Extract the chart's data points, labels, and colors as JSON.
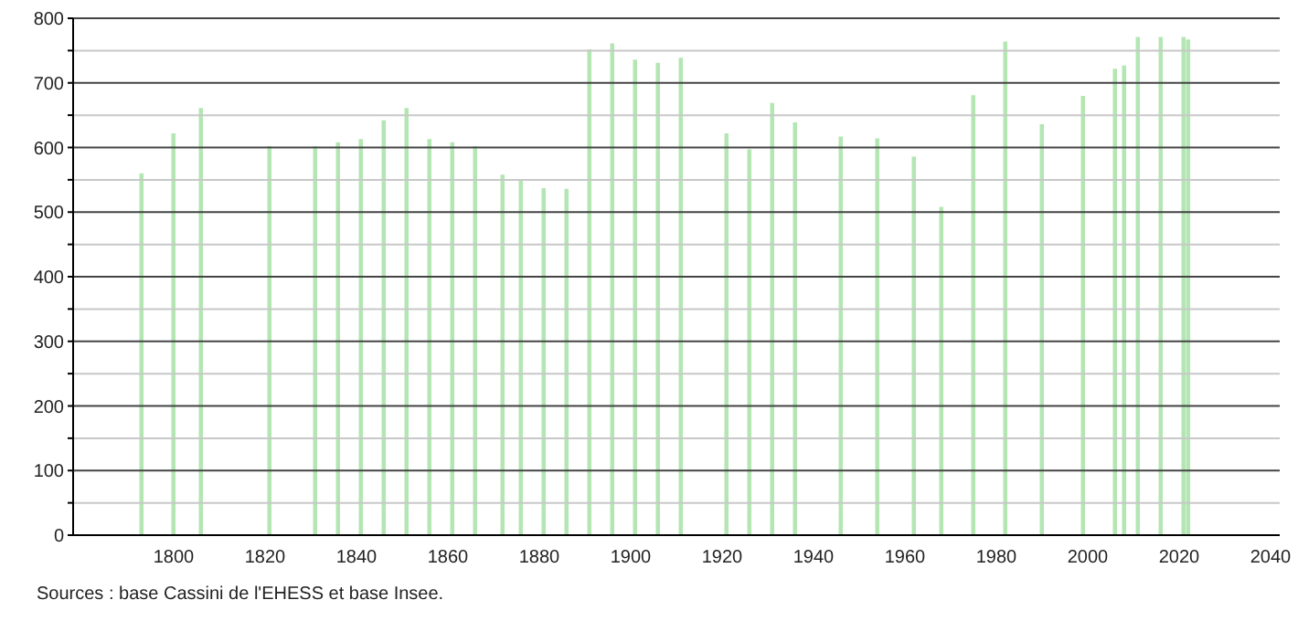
{
  "chart_data": {
    "type": "bar",
    "x": [
      1793,
      1800,
      1806,
      1821,
      1831,
      1836,
      1841,
      1846,
      1851,
      1856,
      1861,
      1866,
      1872,
      1876,
      1881,
      1886,
      1891,
      1896,
      1901,
      1906,
      1911,
      1921,
      1926,
      1931,
      1936,
      1946,
      1954,
      1962,
      1968,
      1975,
      1982,
      1990,
      1999,
      2006,
      2008,
      2011,
      2016,
      2021,
      2022
    ],
    "values": [
      560,
      622,
      661,
      602,
      602,
      608,
      613,
      642,
      661,
      613,
      608,
      602,
      558,
      550,
      537,
      536,
      752,
      761,
      736,
      731,
      739,
      622,
      597,
      669,
      639,
      617,
      614,
      586,
      508,
      681,
      764,
      636,
      680,
      722,
      727,
      771,
      771,
      771,
      767
    ],
    "color": "#b3e6b3",
    "xlim": [
      1778,
      2042
    ],
    "xticks": [
      1800,
      1820,
      1840,
      1860,
      1880,
      1900,
      1920,
      1940,
      1960,
      1980,
      2000,
      2020,
      2040
    ],
    "ylim": [
      0,
      800
    ],
    "yticks": [
      0,
      {
        "value": 50,
        "label": null
      },
      100,
      {
        "value": 150,
        "label": null
      },
      200,
      {
        "value": 250,
        "label": null
      },
      300,
      {
        "value": 350,
        "label": null
      },
      400,
      {
        "value": 450,
        "label": null
      },
      500,
      {
        "value": 550,
        "label": null
      },
      600,
      {
        "value": 650,
        "label": null
      },
      700,
      {
        "value": 750,
        "label": null
      },
      800
    ],
    "grid": "y",
    "annotations": [
      "Sources : base Cassini de l'EHESS et base Insee."
    ]
  }
}
